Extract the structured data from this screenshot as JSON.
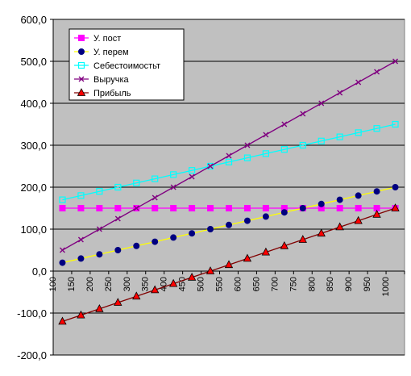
{
  "chart_data": {
    "type": "line",
    "title": "",
    "xlabel": "",
    "ylabel": "",
    "ylim": [
      -200,
      600
    ],
    "yticks": [
      "600,0",
      "500,0",
      "400,0",
      "300,0",
      "200,0",
      "100,0",
      "0,0",
      "-100,0",
      "-200,0"
    ],
    "ytick_values": [
      600,
      500,
      400,
      300,
      200,
      100,
      0,
      -100,
      -200
    ],
    "categories": [
      "100",
      "150",
      "200",
      "250",
      "300",
      "350",
      "400",
      "450",
      "500",
      "550",
      "600",
      "650",
      "700",
      "750",
      "800",
      "850",
      "900",
      "950",
      "1000"
    ],
    "x": [
      100,
      150,
      200,
      250,
      300,
      350,
      400,
      450,
      500,
      550,
      600,
      650,
      700,
      750,
      800,
      850,
      900,
      950,
      1000
    ],
    "plot_background": "#c0c0c0",
    "grid": "horizontal",
    "legend_position": "top-left",
    "series": [
      {
        "name": "У. пост",
        "color": "#ff00ff",
        "marker": "square",
        "values": [
          150,
          150,
          150,
          150,
          150,
          150,
          150,
          150,
          150,
          150,
          150,
          150,
          150,
          150,
          150,
          150,
          150,
          150,
          150
        ]
      },
      {
        "name": "У. перем",
        "color": "#ffff00",
        "marker_color": "#000080",
        "marker": "circle",
        "values": [
          20,
          30,
          40,
          50,
          60,
          70,
          80,
          90,
          100,
          110,
          120,
          130,
          140,
          150,
          160,
          170,
          180,
          190,
          200
        ]
      },
      {
        "name": "Себестоимостьт",
        "color": "#00ffff",
        "marker": "square-open",
        "values": [
          170,
          180,
          190,
          200,
          210,
          220,
          230,
          240,
          250,
          260,
          270,
          280,
          290,
          300,
          310,
          320,
          330,
          340,
          350
        ]
      },
      {
        "name": "Выручка",
        "color": "#800080",
        "marker": "star",
        "values": [
          50,
          75,
          100,
          125,
          150,
          175,
          200,
          225,
          250,
          275,
          300,
          325,
          350,
          375,
          400,
          425,
          450,
          475,
          500
        ]
      },
      {
        "name": "Прибыль",
        "color": "#800000",
        "marker_color": "#ff0000",
        "marker": "triangle",
        "values": [
          -120,
          -105,
          -90,
          -75,
          -60,
          -45,
          -30,
          -15,
          0,
          15,
          30,
          45,
          60,
          75,
          90,
          105,
          120,
          135,
          150
        ]
      }
    ]
  }
}
